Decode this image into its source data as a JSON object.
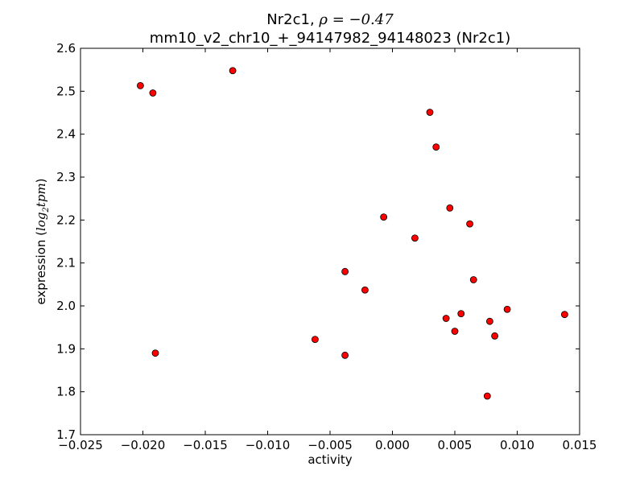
{
  "chart_data": {
    "type": "scatter",
    "title_line1_prefix": "Nr2c1, ",
    "title_line1_rho": "ρ = −0.47",
    "title_line2": "mm10_v2_chr10_+_94147982_94148023 (Nr2c1)",
    "xlabel": "activity",
    "ylabel_prefix": "expression (",
    "ylabel_math": "log",
    "ylabel_sub": "2",
    "ylabel_math2": "tpm",
    "ylabel_suffix": ")",
    "xlim": [
      -0.025,
      0.015
    ],
    "ylim": [
      1.7,
      2.6
    ],
    "xticks": [
      -0.025,
      -0.02,
      -0.015,
      -0.01,
      -0.005,
      0.0,
      0.005,
      0.01,
      0.015
    ],
    "xtick_labels": [
      "−0.025",
      "−0.020",
      "−0.015",
      "−0.010",
      "−0.005",
      "0.000",
      "0.005",
      "0.010",
      "0.015"
    ],
    "yticks": [
      1.7,
      1.8,
      1.9,
      2.0,
      2.1,
      2.2,
      2.3,
      2.4,
      2.5,
      2.6
    ],
    "ytick_labels": [
      "1.7",
      "1.8",
      "1.9",
      "2.0",
      "2.1",
      "2.2",
      "2.3",
      "2.4",
      "2.5",
      "2.6"
    ],
    "grid": false,
    "marker_color": "#ff0000",
    "marker_edge": "#000000",
    "points": [
      {
        "x": -0.0202,
        "y": 2.513
      },
      {
        "x": -0.0192,
        "y": 2.496
      },
      {
        "x": -0.0128,
        "y": 2.548
      },
      {
        "x": -0.019,
        "y": 1.89
      },
      {
        "x": -0.0062,
        "y": 1.922
      },
      {
        "x": -0.0038,
        "y": 2.08
      },
      {
        "x": -0.0038,
        "y": 1.885
      },
      {
        "x": -0.0022,
        "y": 2.037
      },
      {
        "x": -0.0007,
        "y": 2.207
      },
      {
        "x": 0.0018,
        "y": 2.158
      },
      {
        "x": 0.003,
        "y": 2.451
      },
      {
        "x": 0.0035,
        "y": 2.37
      },
      {
        "x": 0.0043,
        "y": 1.971
      },
      {
        "x": 0.0046,
        "y": 2.228
      },
      {
        "x": 0.005,
        "y": 1.941
      },
      {
        "x": 0.0055,
        "y": 1.982
      },
      {
        "x": 0.0062,
        "y": 2.191
      },
      {
        "x": 0.0065,
        "y": 2.061
      },
      {
        "x": 0.0076,
        "y": 1.79
      },
      {
        "x": 0.0078,
        "y": 1.964
      },
      {
        "x": 0.0082,
        "y": 1.93
      },
      {
        "x": 0.0092,
        "y": 1.992
      },
      {
        "x": 0.0138,
        "y": 1.98
      }
    ]
  }
}
